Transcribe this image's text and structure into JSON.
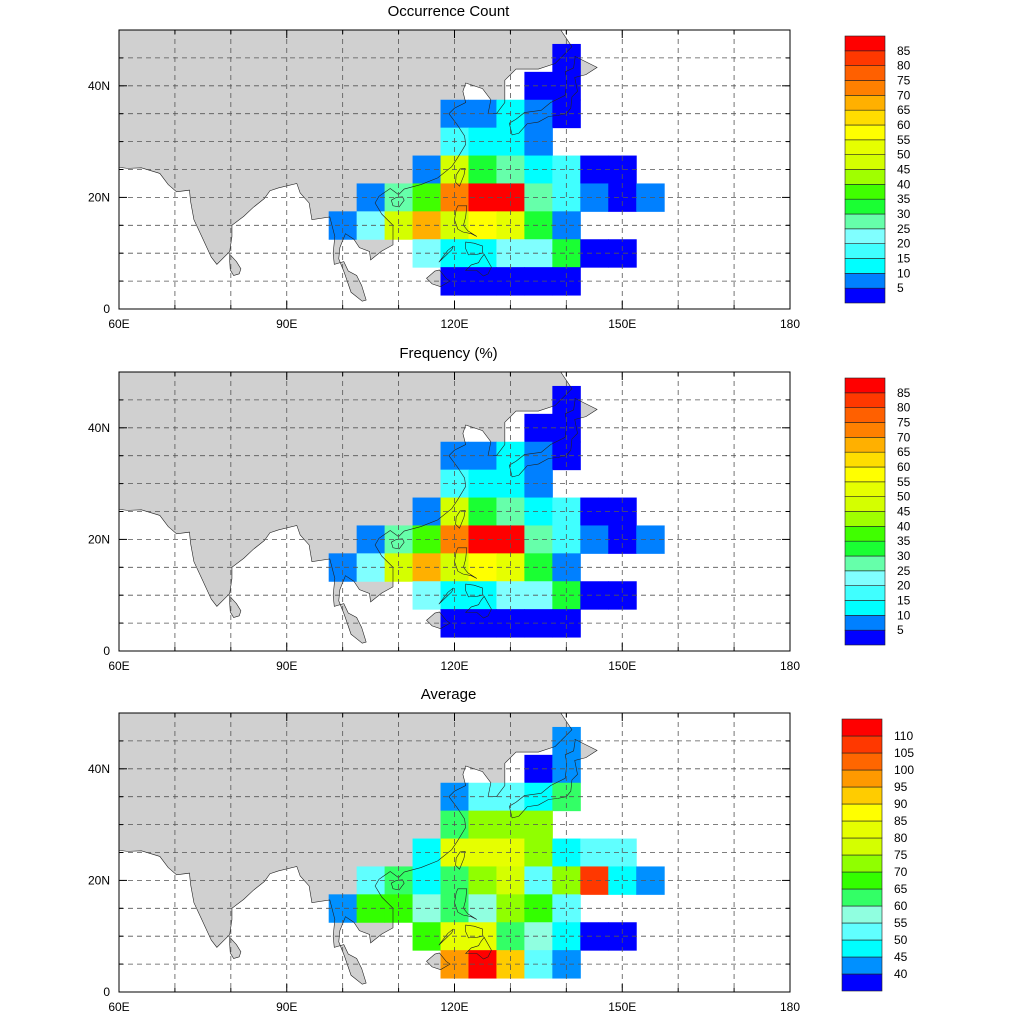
{
  "chart_data": [
    {
      "type": "heatmap",
      "title": "Occurrence Count",
      "x_ticks": [
        "60E",
        "90E",
        "120E",
        "150E",
        "180"
      ],
      "y_ticks": [
        "0",
        "20N",
        "40N"
      ],
      "xlim": [
        60,
        180
      ],
      "ylim": [
        0,
        50
      ],
      "grid": true,
      "cell_lons": [
        100,
        105,
        110,
        115,
        120,
        125,
        130,
        135,
        140,
        145,
        150,
        155
      ],
      "cell_lats": [
        45,
        40,
        35,
        30,
        25,
        20,
        15,
        10,
        5
      ],
      "colorbar": {
        "labels": [
          "5",
          "10",
          "15",
          "20",
          "25",
          "30",
          "35",
          "40",
          "45",
          "50",
          "55",
          "60",
          "65",
          "70",
          "75",
          "80",
          "85"
        ],
        "colors": [
          "#0000ff",
          "#0080ff",
          "#00ffff",
          "#40ffff",
          "#80ffff",
          "#66ffaa",
          "#1aff33",
          "#40ff00",
          "#a0ff00",
          "#d4ff00",
          "#e6ff00",
          "#ffff00",
          "#ffdd00",
          "#ffb000",
          "#ff8000",
          "#ff6000",
          "#ff3800",
          "#ff0000"
        ]
      },
      "level_grid": [
        [
          null,
          null,
          null,
          null,
          null,
          null,
          null,
          null,
          0,
          null,
          null,
          null
        ],
        [
          null,
          null,
          null,
          null,
          null,
          null,
          null,
          0,
          0,
          null,
          null,
          null
        ],
        [
          null,
          null,
          null,
          null,
          1,
          1,
          2,
          1,
          0,
          null,
          null,
          null
        ],
        [
          null,
          null,
          null,
          null,
          3,
          2,
          2,
          1,
          null,
          null,
          null,
          null
        ],
        [
          null,
          null,
          null,
          1,
          9,
          6,
          5,
          2,
          3,
          0,
          0,
          null
        ],
        [
          null,
          1,
          5,
          7,
          14,
          17,
          17,
          5,
          3,
          1,
          0,
          1
        ],
        [
          1,
          4,
          9,
          13,
          9,
          11,
          10,
          6,
          1,
          null,
          null,
          null
        ],
        [
          null,
          null,
          null,
          4,
          2,
          2,
          4,
          4,
          6,
          0,
          0,
          null
        ],
        [
          null,
          null,
          null,
          null,
          0,
          0,
          0,
          0,
          0,
          null,
          null,
          null
        ]
      ]
    },
    {
      "type": "heatmap",
      "title": "Frequency (%)",
      "x_ticks": [
        "60E",
        "90E",
        "120E",
        "150E",
        "180"
      ],
      "y_ticks": [
        "0",
        "20N",
        "40N"
      ],
      "xlim": [
        60,
        180
      ],
      "ylim": [
        0,
        50
      ],
      "grid": true,
      "cell_lons": [
        100,
        105,
        110,
        115,
        120,
        125,
        130,
        135,
        140,
        145,
        150,
        155
      ],
      "cell_lats": [
        45,
        40,
        35,
        30,
        25,
        20,
        15,
        10,
        5
      ],
      "colorbar": {
        "labels": [
          "5",
          "10",
          "15",
          "20",
          "25",
          "30",
          "35",
          "40",
          "45",
          "50",
          "55",
          "60",
          "65",
          "70",
          "75",
          "80",
          "85"
        ],
        "colors": [
          "#0000ff",
          "#0080ff",
          "#00ffff",
          "#40ffff",
          "#80ffff",
          "#66ffaa",
          "#1aff33",
          "#40ff00",
          "#a0ff00",
          "#d4ff00",
          "#e6ff00",
          "#ffff00",
          "#ffdd00",
          "#ffb000",
          "#ff8000",
          "#ff6000",
          "#ff3800",
          "#ff0000"
        ]
      },
      "level_grid": [
        [
          null,
          null,
          null,
          null,
          null,
          null,
          null,
          null,
          0,
          null,
          null,
          null
        ],
        [
          null,
          null,
          null,
          null,
          null,
          null,
          null,
          0,
          0,
          null,
          null,
          null
        ],
        [
          null,
          null,
          null,
          null,
          1,
          1,
          2,
          1,
          0,
          null,
          null,
          null
        ],
        [
          null,
          null,
          null,
          null,
          3,
          2,
          2,
          1,
          null,
          null,
          null,
          null
        ],
        [
          null,
          null,
          null,
          1,
          9,
          6,
          5,
          2,
          3,
          0,
          0,
          null
        ],
        [
          null,
          1,
          5,
          7,
          14,
          17,
          17,
          5,
          3,
          1,
          0,
          1
        ],
        [
          1,
          4,
          9,
          13,
          9,
          11,
          10,
          6,
          1,
          null,
          null,
          null
        ],
        [
          null,
          null,
          null,
          4,
          2,
          2,
          4,
          4,
          6,
          0,
          0,
          null
        ],
        [
          null,
          null,
          null,
          null,
          0,
          0,
          0,
          0,
          0,
          null,
          null,
          null
        ]
      ]
    },
    {
      "type": "heatmap",
      "title": "Average",
      "x_ticks": [
        "60E",
        "90E",
        "120E",
        "150E",
        "180"
      ],
      "y_ticks": [
        "0",
        "20N",
        "40N"
      ],
      "xlim": [
        60,
        180
      ],
      "ylim": [
        0,
        50
      ],
      "grid": true,
      "cell_lons": [
        100,
        105,
        110,
        115,
        120,
        125,
        130,
        135,
        140,
        145,
        150,
        155
      ],
      "cell_lats": [
        45,
        40,
        35,
        30,
        25,
        20,
        15,
        10,
        5
      ],
      "colorbar": {
        "labels": [
          "40",
          "45",
          "50",
          "55",
          "60",
          "65",
          "70",
          "75",
          "80",
          "85",
          "90",
          "95",
          "100",
          "105",
          "110"
        ],
        "colors": [
          "#0000ff",
          "#0090ff",
          "#00ffff",
          "#60ffff",
          "#90ffe0",
          "#33ff66",
          "#33ff00",
          "#90ff00",
          "#d4ff00",
          "#e6ff00",
          "#ffff00",
          "#ffcc00",
          "#ff9900",
          "#ff6600",
          "#ff3800",
          "#ff0000"
        ]
      },
      "level_grid": [
        [
          null,
          null,
          null,
          null,
          null,
          null,
          null,
          null,
          1,
          null,
          null,
          null
        ],
        [
          null,
          null,
          null,
          null,
          null,
          null,
          null,
          0,
          1,
          null,
          null,
          null
        ],
        [
          null,
          null,
          null,
          null,
          1,
          3,
          3,
          2,
          5,
          null,
          null,
          null
        ],
        [
          null,
          null,
          null,
          null,
          5,
          7,
          7,
          7,
          null,
          null,
          null,
          null
        ],
        [
          null,
          null,
          null,
          2,
          9,
          9,
          9,
          7,
          2,
          3,
          3,
          null
        ],
        [
          null,
          3,
          5,
          2,
          5,
          7,
          8,
          3,
          7,
          14,
          2,
          1
        ],
        [
          1,
          6,
          6,
          4,
          5,
          4,
          7,
          6,
          3,
          null,
          null,
          null
        ],
        [
          null,
          null,
          null,
          6,
          9,
          9,
          5,
          4,
          2,
          0,
          0,
          null
        ],
        [
          null,
          null,
          null,
          null,
          12,
          15,
          11,
          3,
          1,
          null,
          null,
          null
        ]
      ]
    }
  ]
}
